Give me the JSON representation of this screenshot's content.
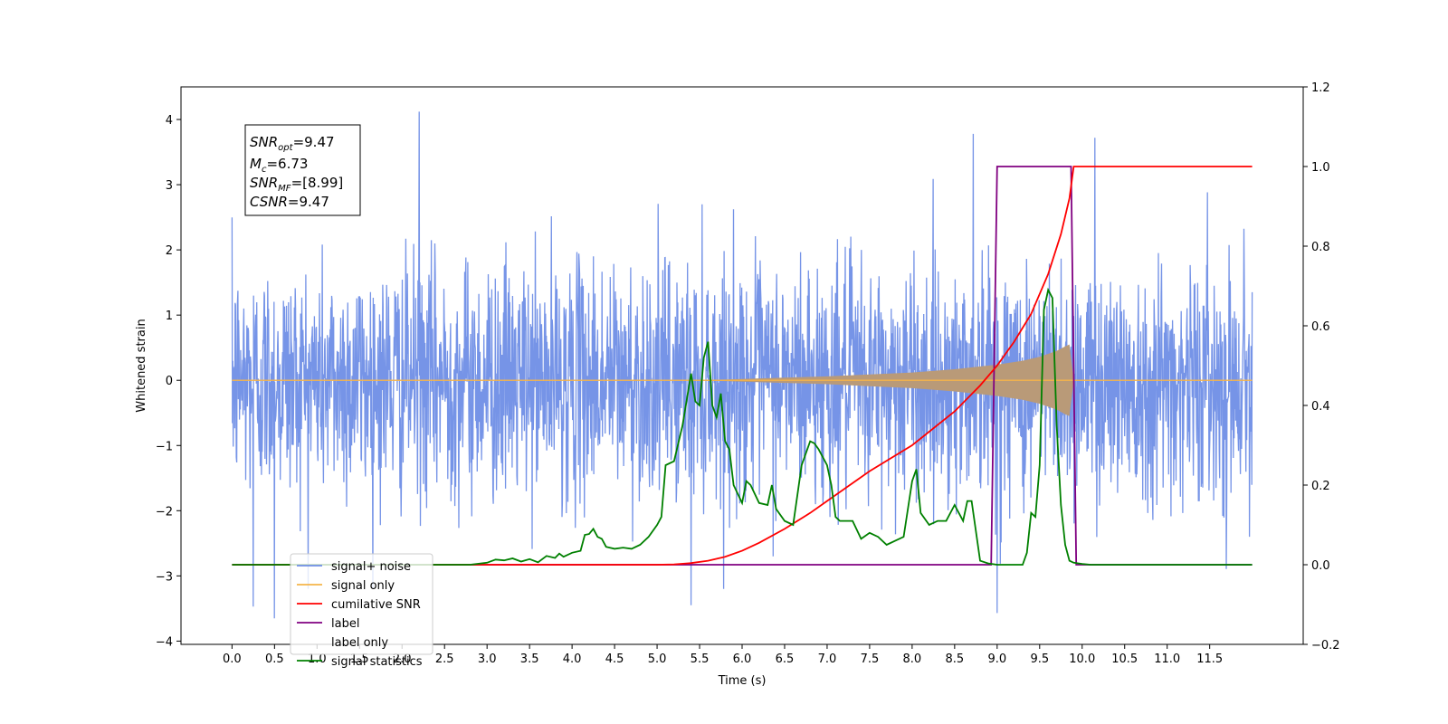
{
  "chart_data": {
    "type": "line",
    "title": "",
    "xlabel": "Time (s)",
    "ylabel": "Whitened strain",
    "y2label": "",
    "xlim": [
      -0.6,
      12.6
    ],
    "ylim": [
      -4.05,
      4.5
    ],
    "y2lim": [
      -0.2,
      1.2
    ],
    "xticks": [
      "0.0",
      "0.5",
      "1.0",
      "1.5",
      "2.0",
      "2.5",
      "3.0",
      "3.5",
      "4.0",
      "4.5",
      "5.0",
      "5.5",
      "6.0",
      "6.5",
      "7.0",
      "7.5",
      "8.0",
      "8.5",
      "9.0",
      "9.5",
      "10.0",
      "10.5",
      "11.0",
      "11.5"
    ],
    "yticks": [
      "4",
      "3",
      "2",
      "1",
      "0",
      "−1",
      "−2",
      "−3",
      "−4"
    ],
    "y2ticks": [
      "1.2",
      "1.0",
      "0.8",
      "0.6",
      "0.4",
      "0.2",
      "0.0",
      "−0.2"
    ],
    "grid": false,
    "legend_position": "lower-left",
    "stats_box": {
      "snr_opt_main": "SNR",
      "snr_opt_sub": "opt",
      "snr_opt_value": "=9.47",
      "mc_main": "M",
      "mc_sub": "c",
      "mc_value": "=6.73",
      "snr_mf_main": "SNR",
      "snr_mf_sub": "MF",
      "snr_mf_value": "=[8.99]",
      "csnr_main": "CSNR",
      "csnr_value": "=9.47"
    },
    "series": [
      {
        "name": "signal+ noise",
        "color": "#6f8ee6",
        "axis": "left",
        "description_values": {
          "x_start": 0.0,
          "x_end": 12.0,
          "approx_std": 0.9,
          "peaks": [
            [
              2.2,
              4.12
            ],
            [
              8.72,
              3.78
            ],
            [
              10.15,
              3.72
            ],
            [
              0.5,
              -3.65
            ],
            [
              9.0,
              -3.57
            ],
            [
              5.4,
              -3.45
            ],
            [
              0.25,
              -3.47
            ]
          ]
        }
      },
      {
        "name": "signal only",
        "color": "#f5b44a",
        "axis": "left",
        "envelope": [
          [
            0.0,
            0.0
          ],
          [
            5.5,
            0.0
          ],
          [
            6.0,
            0.02
          ],
          [
            6.5,
            0.04
          ],
          [
            7.0,
            0.06
          ],
          [
            7.5,
            0.09
          ],
          [
            8.0,
            0.12
          ],
          [
            8.5,
            0.17
          ],
          [
            9.0,
            0.24
          ],
          [
            9.3,
            0.3
          ],
          [
            9.5,
            0.36
          ],
          [
            9.7,
            0.45
          ],
          [
            9.8,
            0.52
          ],
          [
            9.85,
            0.55
          ],
          [
            9.9,
            0.0
          ],
          [
            12.0,
            0.0
          ]
        ]
      },
      {
        "name": "cumilative SNR",
        "color": "#ff0000",
        "axis": "right",
        "x": [
          0.0,
          5.0,
          5.2,
          5.4,
          5.6,
          5.8,
          6.0,
          6.2,
          6.5,
          6.8,
          7.0,
          7.5,
          8.0,
          8.5,
          8.8,
          9.0,
          9.2,
          9.4,
          9.6,
          9.75,
          9.85,
          9.9,
          10.0,
          12.0
        ],
        "values": [
          0.0,
          0.0,
          0.001,
          0.004,
          0.01,
          0.02,
          0.035,
          0.055,
          0.09,
          0.13,
          0.16,
          0.235,
          0.3,
          0.385,
          0.45,
          0.5,
          0.56,
          0.63,
          0.73,
          0.83,
          0.92,
          1.0,
          1.0,
          1.0
        ]
      },
      {
        "name": "label",
        "color": "#800080",
        "axis": "right",
        "x": [
          0.0,
          8.93,
          9.0,
          9.87,
          9.93,
          12.0
        ],
        "values": [
          0.0,
          0.0,
          1.0,
          1.0,
          0.0,
          0.0
        ]
      },
      {
        "name": "label only",
        "color": "#ffffff",
        "axis": "right",
        "x": [],
        "values": []
      },
      {
        "name": "signal statistics",
        "color": "#008000",
        "axis": "right",
        "x": [
          0.0,
          2.8,
          3.0,
          3.1,
          3.2,
          3.3,
          3.4,
          3.5,
          3.6,
          3.7,
          3.8,
          3.85,
          3.9,
          4.0,
          4.1,
          4.15,
          4.2,
          4.25,
          4.3,
          4.35,
          4.4,
          4.5,
          4.6,
          4.7,
          4.8,
          4.9,
          5.0,
          5.05,
          5.1,
          5.2,
          5.3,
          5.4,
          5.45,
          5.5,
          5.55,
          5.6,
          5.65,
          5.7,
          5.75,
          5.8,
          5.85,
          5.9,
          6.0,
          6.05,
          6.1,
          6.2,
          6.3,
          6.35,
          6.4,
          6.5,
          6.6,
          6.7,
          6.8,
          6.85,
          6.9,
          7.0,
          7.05,
          7.1,
          7.15,
          7.2,
          7.3,
          7.4,
          7.5,
          7.6,
          7.7,
          7.8,
          7.9,
          8.0,
          8.05,
          8.1,
          8.2,
          8.3,
          8.4,
          8.5,
          8.6,
          8.65,
          8.7,
          8.8,
          8.9,
          9.0,
          9.3,
          9.35,
          9.4,
          9.45,
          9.5,
          9.55,
          9.6,
          9.65,
          9.7,
          9.75,
          9.8,
          9.85,
          9.9,
          10.0,
          10.1,
          10.2,
          12.0
        ],
        "values": [
          0.0,
          0.0,
          0.005,
          0.013,
          0.011,
          0.016,
          0.008,
          0.014,
          0.006,
          0.022,
          0.017,
          0.028,
          0.02,
          0.03,
          0.035,
          0.075,
          0.077,
          0.09,
          0.07,
          0.065,
          0.045,
          0.04,
          0.043,
          0.04,
          0.05,
          0.07,
          0.1,
          0.12,
          0.25,
          0.26,
          0.35,
          0.48,
          0.41,
          0.4,
          0.52,
          0.56,
          0.4,
          0.37,
          0.43,
          0.31,
          0.29,
          0.2,
          0.155,
          0.21,
          0.2,
          0.155,
          0.15,
          0.2,
          0.14,
          0.11,
          0.1,
          0.25,
          0.31,
          0.305,
          0.29,
          0.25,
          0.2,
          0.12,
          0.11,
          0.11,
          0.11,
          0.065,
          0.08,
          0.07,
          0.05,
          0.06,
          0.07,
          0.21,
          0.24,
          0.13,
          0.1,
          0.11,
          0.11,
          0.15,
          0.11,
          0.16,
          0.16,
          0.01,
          0.003,
          0.0,
          0.0,
          0.03,
          0.13,
          0.12,
          0.25,
          0.64,
          0.69,
          0.67,
          0.35,
          0.15,
          0.05,
          0.01,
          0.005,
          0.002,
          0.0,
          0.0,
          0.0
        ]
      }
    ]
  }
}
